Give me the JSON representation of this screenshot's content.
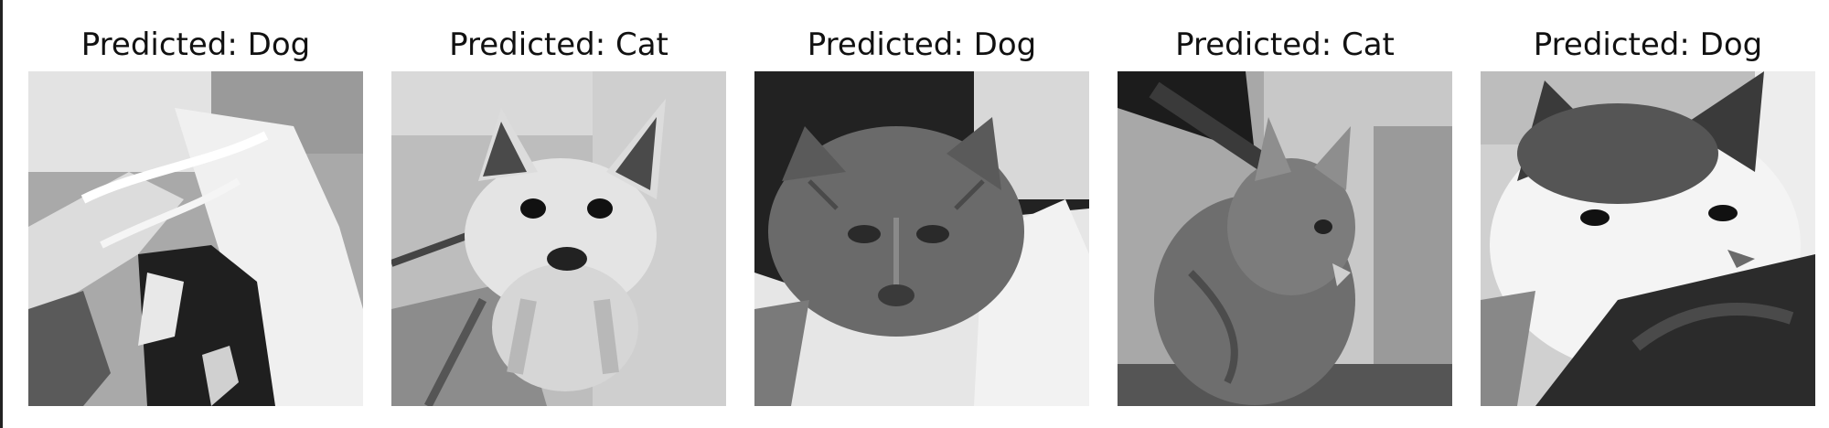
{
  "panels": [
    {
      "title": "Predicted: Dog",
      "image": "grayscale cat photo (partially hidden, predicted dog)"
    },
    {
      "title": "Predicted: Cat",
      "image": "grayscale small dog photo (predicted cat)"
    },
    {
      "title": "Predicted: Dog",
      "image": "grayscale tabby cat on pillow (predicted dog)"
    },
    {
      "title": "Predicted: Cat",
      "image": "grayscale tabby cat looking right (predicted cat)"
    },
    {
      "title": "Predicted: Dog",
      "image": "grayscale white and dark cat (predicted dog)"
    }
  ],
  "colors": {
    "text": "#111111",
    "background": "#ffffff"
  }
}
